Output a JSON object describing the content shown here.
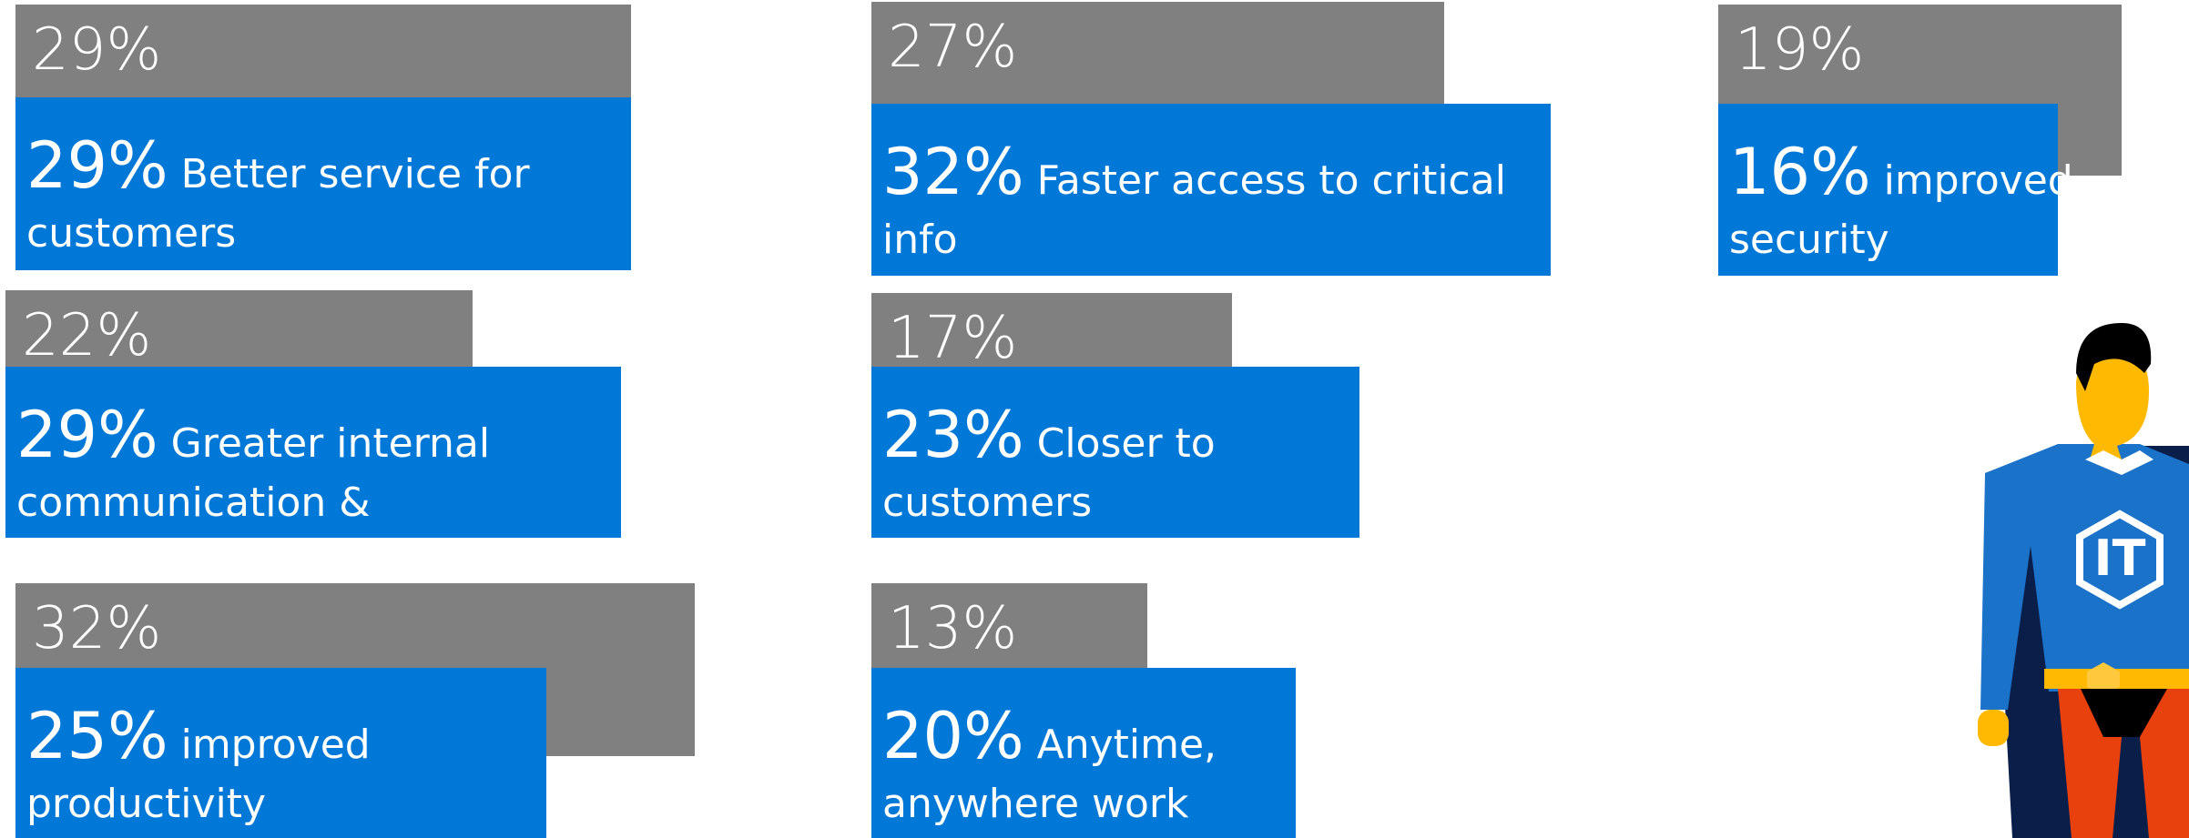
{
  "items": [
    {
      "gray": {
        "value": 29,
        "label": "29%"
      },
      "blue": {
        "value": 29,
        "label": "29%"
      },
      "text": "Better service for customers"
    },
    {
      "gray": {
        "value": 27,
        "label": "27%"
      },
      "blue": {
        "value": 32,
        "label": "32%"
      },
      "text": "Faster access to critical info"
    },
    {
      "gray": {
        "value": 19,
        "label": "19%"
      },
      "blue": {
        "value": 16,
        "label": "16%"
      },
      "text": "improved security"
    },
    {
      "gray": {
        "value": 22,
        "label": "22%"
      },
      "blue": {
        "value": 29,
        "label": "29%"
      },
      "text": "Greater internal communication & collaboration"
    },
    {
      "gray": {
        "value": 17,
        "label": "17%"
      },
      "blue": {
        "value": 23,
        "label": "23%"
      },
      "text": "Closer to customers"
    },
    {
      "gray": {
        "value": 32,
        "label": "32%"
      },
      "blue": {
        "value": 25,
        "label": "25%"
      },
      "text": "improved productivity"
    },
    {
      "gray": {
        "value": 13,
        "label": "13%"
      },
      "blue": {
        "value": 20,
        "label": "20%"
      },
      "text": "Anytime, anywhere work"
    }
  ],
  "badge": "IT"
}
